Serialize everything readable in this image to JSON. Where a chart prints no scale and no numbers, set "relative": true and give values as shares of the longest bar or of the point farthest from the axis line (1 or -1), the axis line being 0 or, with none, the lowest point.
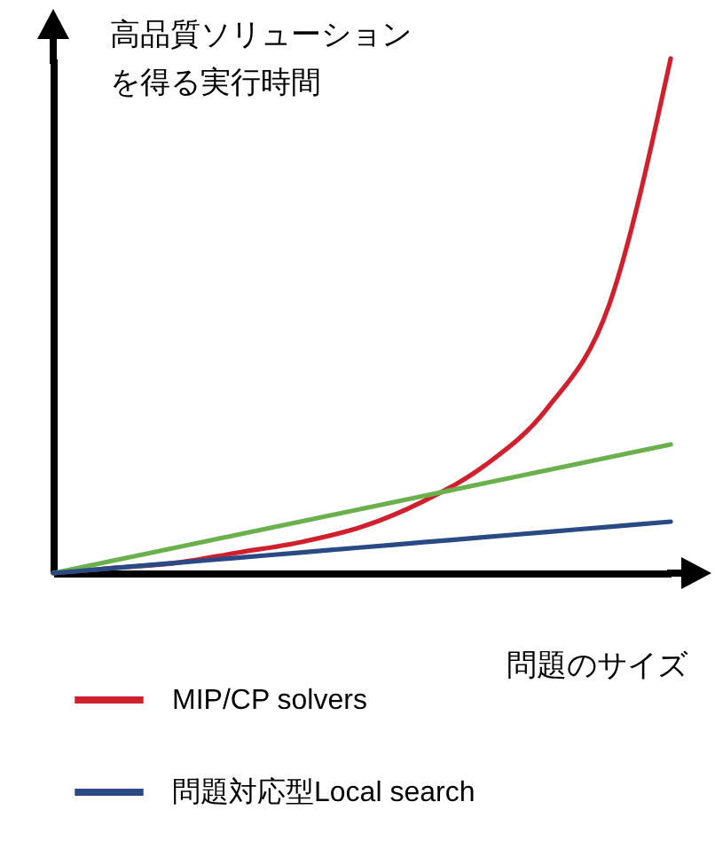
{
  "chart_data": {
    "type": "line",
    "relative": true,
    "ylabel": "高品質ソリューションを得る実行時間",
    "xlabel": "問題のサイズ",
    "categories": [
      null,
      null,
      null,
      null,
      null,
      null,
      null,
      null,
      null,
      null,
      null
    ],
    "series": [
      {
        "name": "MIP/CP solvers",
        "color": "#d0202e",
        "values": [
          0,
          0.01,
          0.02,
          0.04,
          0.06,
          0.09,
          0.14,
          0.21,
          0.32,
          0.52,
          1
        ]
      },
      {
        "color": "#6ab04c",
        "values": [
          0,
          0.025,
          0.05,
          0.075,
          0.1,
          0.125,
          0.15,
          0.175,
          0.2,
          0.225,
          0.25
        ]
      },
      {
        "name": "問題対応型Local search",
        "color": "#2a4a86",
        "values": [
          0,
          0.01,
          0.02,
          0.03,
          0.04,
          0.05,
          0.06,
          0.07,
          0.08,
          0.09,
          0.1
        ]
      }
    ],
    "legend": "bottom",
    "grid": false,
    "marker": "none",
    "line_style": "solid"
  }
}
